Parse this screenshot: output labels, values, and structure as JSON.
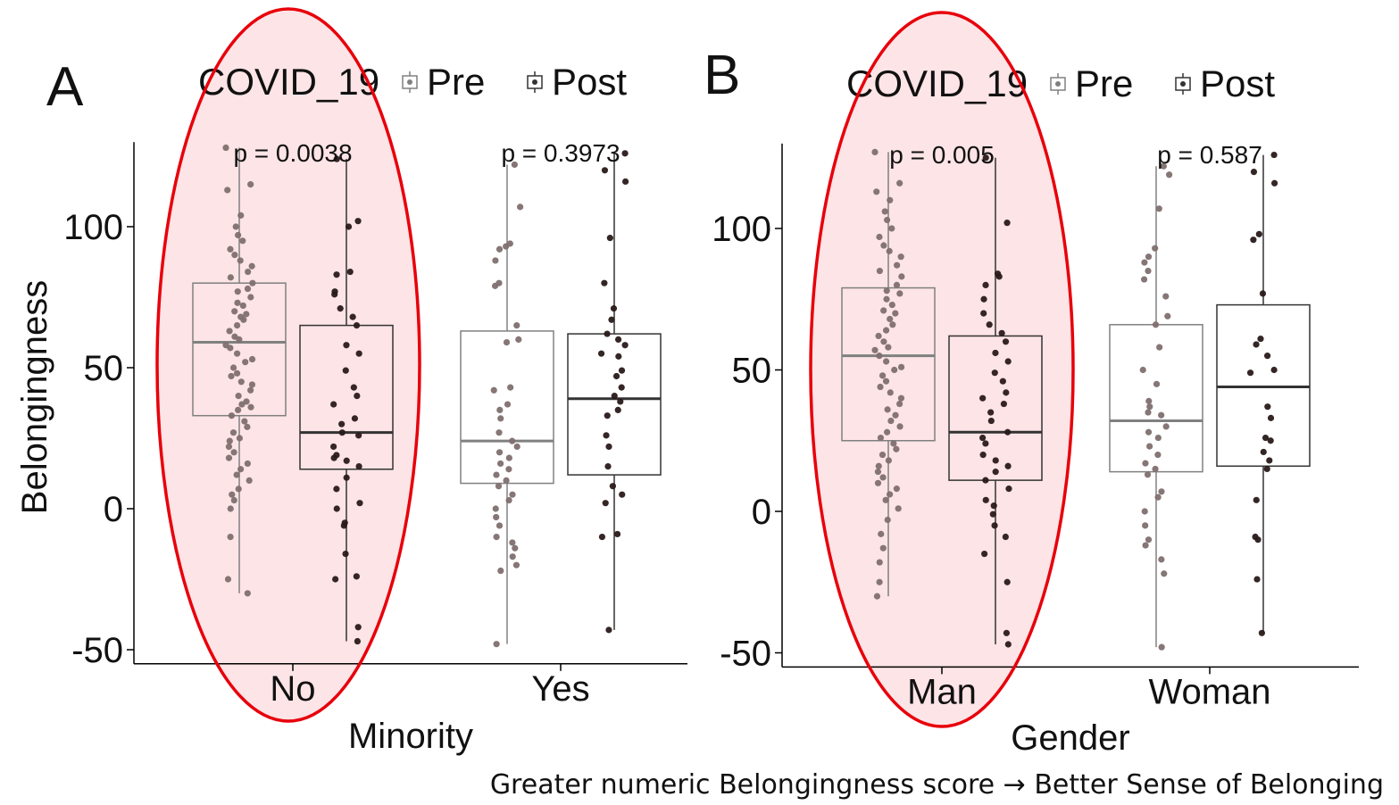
{
  "caption": "Greater numeric Belongingness score → Better Sense of Belonging",
  "colors": {
    "pre": "#808080",
    "pre_point": "#7f6f6f",
    "post": "#333333",
    "post_point": "#2a1a1a",
    "highlight_fill": "#fde4e6",
    "highlight_stroke": "#e8000b"
  },
  "chart_data": [
    {
      "panel_label": "A",
      "type": "box",
      "legend": {
        "title": "COVID_19",
        "entries": [
          "Pre",
          "Post"
        ],
        "position": "top"
      },
      "xlabel": "Minority",
      "ylabel": "Belongingness",
      "categories": [
        "No",
        "Yes"
      ],
      "ylim": [
        -55,
        130
      ],
      "yticks": [
        100,
        50,
        0,
        -50
      ],
      "grid": false,
      "highlight_category": "No",
      "annotations": [
        "p = 0.0038",
        "p = 0.3973"
      ],
      "series": [
        {
          "name": "Pre",
          "boxes": [
            {
              "min": -30,
              "q1": 33,
              "median": 59,
              "q3": 80,
              "max": 128,
              "points": [
                128,
                115,
                113,
                104,
                100,
                97,
                95,
                92,
                90,
                88,
                86,
                84,
                82,
                80,
                78,
                77,
                75,
                73,
                72,
                70,
                69,
                68,
                67,
                65,
                63,
                61,
                60,
                58,
                57,
                55,
                53,
                52,
                50,
                48,
                47,
                45,
                44,
                42,
                40,
                38,
                37,
                36,
                35,
                33,
                31,
                29,
                27,
                25,
                24,
                22,
                20,
                18,
                16,
                14,
                12,
                10,
                7,
                5,
                3,
                0,
                -10,
                -25,
                -30
              ]
            },
            {
              "min": -48,
              "q1": 9,
              "median": 24,
              "q3": 63,
              "max": 122,
              "points": [
                122,
                107,
                94,
                93,
                92,
                88,
                80,
                79,
                65,
                60,
                59,
                43,
                42,
                37,
                35,
                32,
                27,
                24,
                22,
                20,
                18,
                16,
                14,
                12,
                10,
                8,
                5,
                3,
                0,
                -3,
                -6,
                -10,
                -12,
                -14,
                -17,
                -20,
                -22,
                -48
              ]
            }
          ]
        },
        {
          "name": "Post",
          "boxes": [
            {
              "min": -47,
              "q1": 14,
              "median": 27,
              "q3": 65,
              "max": 124,
              "points": [
                124,
                102,
                100,
                84,
                83,
                77,
                76,
                71,
                68,
                65,
                58,
                55,
                49,
                43,
                40,
                37,
                32,
                30,
                27,
                26,
                22,
                19,
                18,
                17,
                15,
                11,
                7,
                2,
                0,
                -5,
                -6,
                -16,
                -24,
                -25,
                -42,
                -47
              ]
            },
            {
              "min": -43,
              "q1": 12,
              "median": 39,
              "q3": 62,
              "max": 126,
              "points": [
                126,
                120,
                116,
                96,
                80,
                71,
                67,
                62,
                60,
                58,
                55,
                54,
                49,
                47,
                43,
                40,
                38,
                35,
                33,
                26,
                22,
                15,
                8,
                5,
                2,
                -9,
                -10,
                -43
              ]
            }
          ]
        }
      ]
    },
    {
      "panel_label": "B",
      "type": "box",
      "legend": {
        "title": "COVID_19",
        "entries": [
          "Pre",
          "Post"
        ],
        "position": "top"
      },
      "xlabel": "Gender",
      "ylabel": "",
      "categories": [
        "Man",
        "Woman"
      ],
      "ylim": [
        -55,
        130
      ],
      "yticks": [
        100,
        50,
        0,
        -50
      ],
      "grid": false,
      "highlight_category": "Man",
      "annotations": [
        "p = 0.005",
        "p = 0.587"
      ],
      "series": [
        {
          "name": "Pre",
          "boxes": [
            {
              "min": -30,
              "q1": 25,
              "median": 55,
              "q3": 79,
              "max": 127,
              "points": [
                127,
                116,
                113,
                110,
                106,
                103,
                100,
                97,
                94,
                92,
                90,
                87,
                85,
                83,
                80,
                78,
                77,
                75,
                73,
                71,
                70,
                68,
                66,
                64,
                62,
                60,
                58,
                57,
                55,
                53,
                51,
                50,
                48,
                46,
                44,
                42,
                40,
                38,
                36,
                34,
                32,
                30,
                28,
                26,
                24,
                22,
                20,
                18,
                16,
                14,
                12,
                10,
                8,
                6,
                4,
                1,
                -3,
                -8,
                -13,
                -18,
                -25,
                -30
              ]
            },
            {
              "min": -48,
              "q1": 14,
              "median": 32,
              "q3": 66,
              "max": 122,
              "points": [
                122,
                119,
                107,
                93,
                90,
                88,
                85,
                82,
                76,
                69,
                66,
                58,
                50,
                45,
                39,
                37,
                35,
                34,
                30,
                28,
                26,
                23,
                20,
                17,
                15,
                13,
                7,
                5,
                0,
                -5,
                -10,
                -12,
                -17,
                -22,
                -48
              ]
            }
          ]
        },
        {
          "name": "Post",
          "boxes": [
            {
              "min": -47,
              "q1": 11,
              "median": 28,
              "q3": 62,
              "max": 125,
              "points": [
                125,
                102,
                84,
                83,
                80,
                75,
                70,
                66,
                63,
                60,
                56,
                53,
                49,
                46,
                42,
                40,
                38,
                35,
                32,
                28,
                26,
                24,
                20,
                18,
                16,
                14,
                11,
                8,
                4,
                2,
                -1,
                -5,
                -9,
                -15,
                -25,
                -43,
                -47
              ]
            },
            {
              "min": -43,
              "q1": 16,
              "median": 44,
              "q3": 73,
              "max": 126,
              "points": [
                126,
                120,
                116,
                98,
                96,
                77,
                61,
                59,
                55,
                50,
                49,
                37,
                33,
                26,
                25,
                21,
                18,
                15,
                4,
                -9,
                -10,
                -24,
                -43
              ]
            }
          ]
        }
      ]
    }
  ]
}
